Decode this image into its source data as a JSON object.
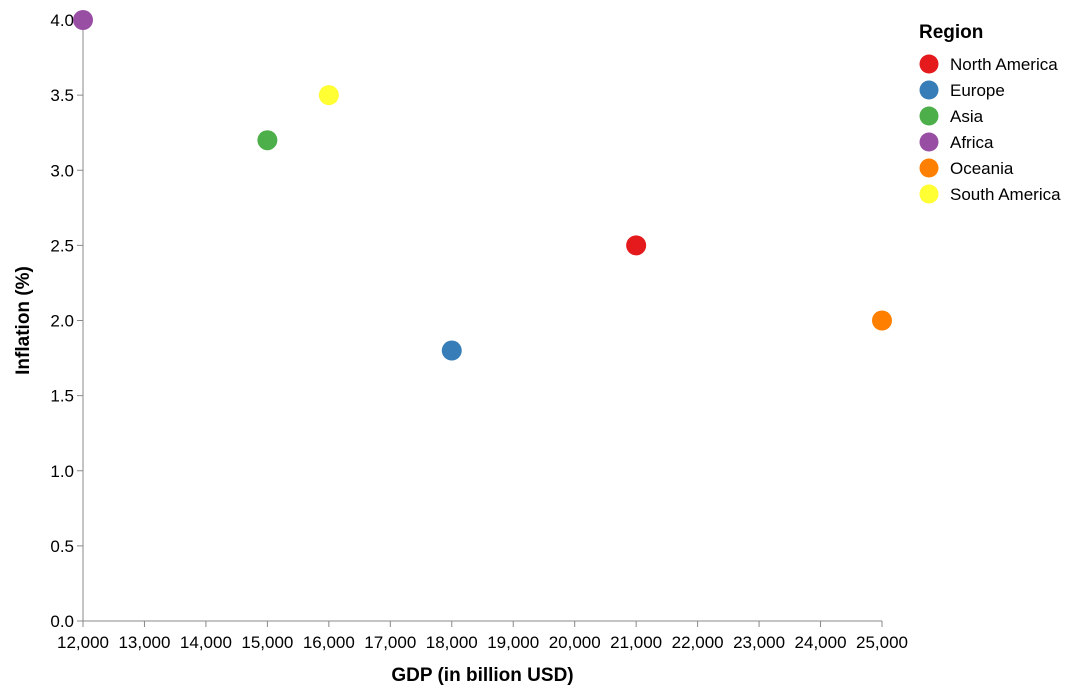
{
  "chart_data": {
    "type": "scatter",
    "xlabel": "GDP (in billion USD)",
    "ylabel": "Inflation (%)",
    "xlim": [
      12000,
      25000
    ],
    "ylim": [
      0,
      4
    ],
    "x_ticks": [
      "12,000",
      "13,000",
      "14,000",
      "15,000",
      "16,000",
      "17,000",
      "18,000",
      "19,000",
      "20,000",
      "21,000",
      "22,000",
      "23,000",
      "24,000",
      "25,000"
    ],
    "y_ticks": [
      "0.0",
      "0.5",
      "1.0",
      "1.5",
      "2.0",
      "2.5",
      "3.0",
      "3.5",
      "4.0"
    ],
    "grid": false,
    "legend": {
      "title": "Region",
      "placement": "top-right"
    },
    "series": [
      {
        "name": "North America",
        "color": "#e41a1c",
        "x": 21000,
        "y": 2.5
      },
      {
        "name": "Europe",
        "color": "#377eb8",
        "x": 18000,
        "y": 1.8
      },
      {
        "name": "Asia",
        "color": "#4daf4a",
        "x": 15000,
        "y": 3.2
      },
      {
        "name": "Africa",
        "color": "#984ea3",
        "x": 12000,
        "y": 4.0
      },
      {
        "name": "Oceania",
        "color": "#ff7f00",
        "x": 25000,
        "y": 2.0
      },
      {
        "name": "South America",
        "color": "#ffff33",
        "x": 16000,
        "y": 3.5
      }
    ]
  }
}
